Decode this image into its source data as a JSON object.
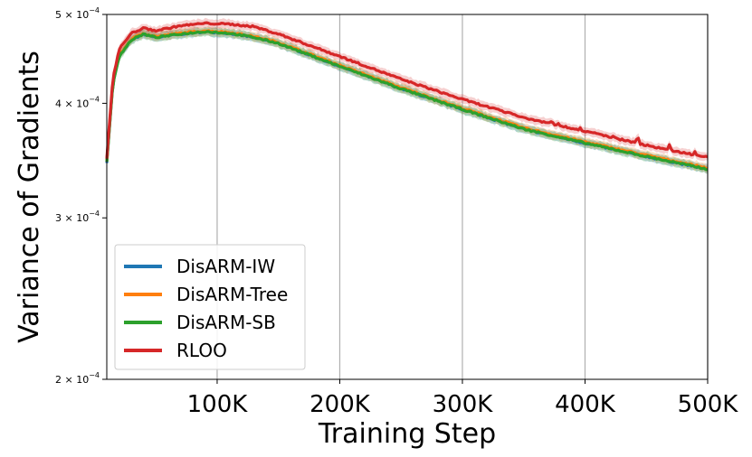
{
  "chart_data": {
    "type": "line",
    "title": "",
    "xlabel": "Training Step",
    "ylabel": "Variance of Gradients",
    "y_scale": "log",
    "xlim": [
      10000,
      500000
    ],
    "ylim": [
      0.0002,
      0.0005
    ],
    "grid": "vertical",
    "legend_position": "lower-left",
    "x_ticks": [
      100000,
      200000,
      300000,
      400000,
      500000
    ],
    "x_tick_labels": [
      "100K",
      "200K",
      "300K",
      "400K",
      "500K"
    ],
    "y_ticks": [
      0.0002,
      0.0003,
      0.0004,
      0.0005
    ],
    "y_tick_labels": [
      {
        "mantissa": "2",
        "exp": "−4"
      },
      {
        "mantissa": "3",
        "exp": "−4"
      },
      {
        "mantissa": "4",
        "exp": "−4"
      },
      {
        "mantissa": "5",
        "exp": "−4"
      }
    ],
    "y_tick_base": "× 10",
    "x": [
      10000,
      15000,
      20000,
      30000,
      40000,
      50000,
      70000,
      90000,
      110000,
      130000,
      150000,
      200000,
      250000,
      300000,
      350000,
      400000,
      450000,
      500000
    ],
    "series": [
      {
        "name": "DisARM-IW",
        "color": "#1f77b4",
        "band_color": "#1f77b4",
        "values": [
          0.000345,
          0.00042,
          0.00045,
          0.000469,
          0.000476,
          0.000472,
          0.000476,
          0.000479,
          0.000477,
          0.000472,
          0.000465,
          0.000439,
          0.000415,
          0.000394,
          0.000375,
          0.000362,
          0.00035,
          0.000339
        ]
      },
      {
        "name": "DisARM-Tree",
        "color": "#ff7f0e",
        "band_color": "#ff7f0e",
        "values": [
          0.000346,
          0.000421,
          0.000451,
          0.00047,
          0.000477,
          0.000473,
          0.000477,
          0.00048,
          0.000478,
          0.000473,
          0.000466,
          0.00044,
          0.000416,
          0.000395,
          0.000376,
          0.000363,
          0.000351,
          0.00034
        ]
      },
      {
        "name": "DisARM-SB",
        "color": "#2ca02c",
        "band_color": "#2ca02c",
        "values": [
          0.000345,
          0.00042,
          0.00045,
          0.000469,
          0.000476,
          0.000472,
          0.000476,
          0.000479,
          0.000477,
          0.000472,
          0.000465,
          0.000439,
          0.000415,
          0.000394,
          0.000375,
          0.000362,
          0.00035,
          0.000339
        ]
      },
      {
        "name": "RLOO",
        "color": "#d62728",
        "band_color": "#d62728",
        "values": [
          0.000348,
          0.000426,
          0.000458,
          0.000477,
          0.000483,
          0.00048,
          0.000486,
          0.000489,
          0.000488,
          0.000485,
          0.000476,
          0.00045,
          0.000425,
          0.000404,
          0.000386,
          0.000373,
          0.00036,
          0.000349
        ]
      }
    ]
  }
}
